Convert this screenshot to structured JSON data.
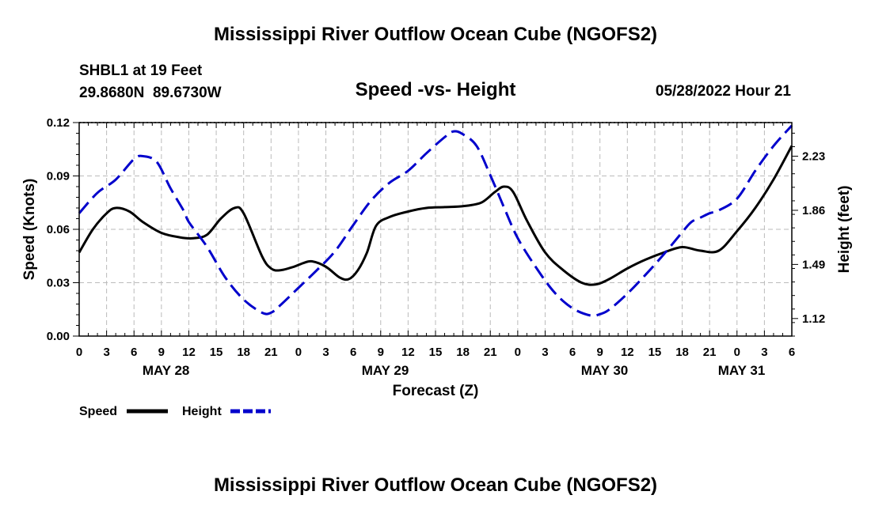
{
  "header": {
    "title": "Mississippi River Outflow Ocean Cube (NGOFS2)",
    "station_name": "SHBL1 at 19 Feet",
    "station_coords": "29.8680N  89.6730W",
    "subtitle": "Speed -vs- Height",
    "datetime": "05/28/2022 Hour 21"
  },
  "footer": {
    "title": "Mississippi River Outflow Ocean Cube (NGOFS2)"
  },
  "chart_data": {
    "type": "line",
    "xlabel": "Forecast (Z)",
    "ylabel": "Speed (Knots)",
    "ylabel_right": "Height (feet)",
    "xlim": [
      0,
      78
    ],
    "ylim": [
      0,
      0.12
    ],
    "ylim_right": [
      1.0,
      2.46
    ],
    "x_tick_labels": [
      "0",
      "3",
      "6",
      "9",
      "12",
      "15",
      "18",
      "21",
      "0",
      "3",
      "6",
      "9",
      "12",
      "15",
      "18",
      "21",
      "0",
      "3",
      "6",
      "9",
      "12",
      "15",
      "18",
      "21",
      "0",
      "3",
      "6"
    ],
    "y_ticks": [
      "0.00",
      "0.03",
      "0.06",
      "0.09",
      "0.12"
    ],
    "y_ticks_right": [
      "1.12",
      "1.49",
      "1.86",
      "2.23"
    ],
    "day_labels": [
      {
        "label": "MAY 28",
        "x": 9.5
      },
      {
        "label": "MAY 29",
        "x": 33.5
      },
      {
        "label": "MAY 30",
        "x": 57.5
      },
      {
        "label": "MAY 31",
        "x": 72.5
      }
    ],
    "grid": true,
    "legend": [
      {
        "name": "Speed",
        "color": "#000000",
        "style": "solid"
      },
      {
        "name": "Height",
        "color": "#0000cc",
        "style": "dashed"
      }
    ],
    "series": [
      {
        "name": "Speed",
        "axis": "left",
        "color": "#000000",
        "x": [
          0,
          1.5,
          3,
          4,
          5.5,
          7,
          9,
          11,
          12.5,
          14,
          15.5,
          17,
          18,
          20,
          21,
          22,
          23.5,
          24.5,
          25.5,
          27,
          28.5,
          29.5,
          30.5,
          31.5,
          32.5,
          34,
          36,
          38,
          40,
          42,
          44,
          45.5,
          46.5,
          47.5,
          49,
          51,
          53,
          55,
          56.5,
          58,
          60,
          62,
          64,
          66,
          68,
          70,
          72,
          74,
          76,
          78
        ],
        "y": [
          0.047,
          0.06,
          0.069,
          0.072,
          0.07,
          0.064,
          0.058,
          0.0555,
          0.055,
          0.057,
          0.066,
          0.072,
          0.069,
          0.045,
          0.038,
          0.037,
          0.039,
          0.041,
          0.042,
          0.039,
          0.033,
          0.032,
          0.037,
          0.047,
          0.062,
          0.067,
          0.07,
          0.072,
          0.0725,
          0.073,
          0.075,
          0.081,
          0.084,
          0.081,
          0.065,
          0.047,
          0.037,
          0.03,
          0.029,
          0.032,
          0.038,
          0.043,
          0.047,
          0.05,
          0.048,
          0.048,
          0.059,
          0.072,
          0.088,
          0.107
        ]
      },
      {
        "name": "Height",
        "axis": "right",
        "color": "#0000cc",
        "x": [
          0,
          2,
          4,
          6,
          7,
          8.5,
          10,
          11.5,
          12,
          14,
          16,
          18,
          20,
          21,
          22,
          24,
          26,
          28,
          30,
          32,
          34,
          36,
          38,
          40,
          41,
          42,
          43.5,
          45,
          46.5,
          48,
          50,
          52,
          54,
          56,
          57,
          58,
          60,
          62,
          64,
          66,
          67,
          68,
          69,
          70,
          72,
          74,
          76,
          78
        ],
        "y": [
          1.84,
          1.98,
          2.07,
          2.21,
          2.23,
          2.19,
          2.01,
          1.85,
          1.78,
          1.61,
          1.4,
          1.25,
          1.16,
          1.16,
          1.21,
          1.33,
          1.45,
          1.58,
          1.76,
          1.93,
          2.05,
          2.13,
          2.25,
          2.36,
          2.4,
          2.38,
          2.3,
          2.1,
          1.88,
          1.67,
          1.47,
          1.3,
          1.19,
          1.14,
          1.15,
          1.18,
          1.29,
          1.42,
          1.56,
          1.71,
          1.78,
          1.81,
          1.84,
          1.86,
          1.94,
          2.13,
          2.3,
          2.44
        ]
      }
    ]
  }
}
